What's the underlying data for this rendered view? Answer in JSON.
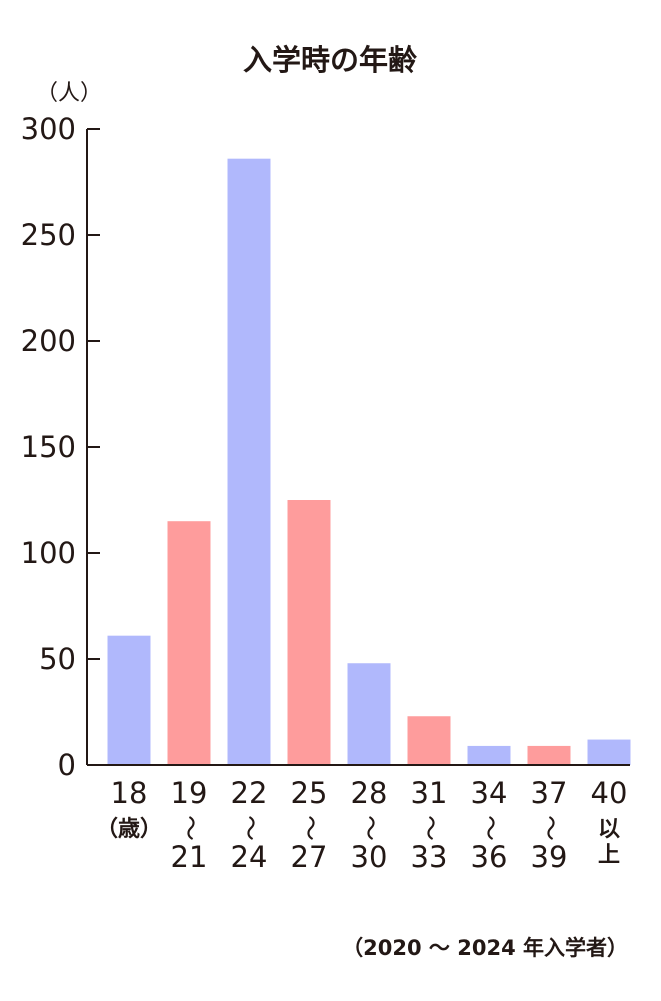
{
  "chart_data": {
    "type": "bar",
    "title": "入学時の年齢",
    "unit_label": "（人）",
    "footnote": "（2020 ～ 2024 年入学者）",
    "ylim": [
      0,
      300
    ],
    "yticks": [
      0,
      50,
      100,
      150,
      200,
      250,
      300
    ],
    "categories": [
      {
        "top": "18",
        "mid": "（歳）",
        "bottom": ""
      },
      {
        "top": "19",
        "mid": "～",
        "bottom": "21"
      },
      {
        "top": "22",
        "mid": "～",
        "bottom": "24"
      },
      {
        "top": "25",
        "mid": "～",
        "bottom": "27"
      },
      {
        "top": "28",
        "mid": "～",
        "bottom": "30"
      },
      {
        "top": "31",
        "mid": "～",
        "bottom": "33"
      },
      {
        "top": "34",
        "mid": "～",
        "bottom": "36"
      },
      {
        "top": "37",
        "mid": "～",
        "bottom": "39"
      },
      {
        "top": "40",
        "mid": "以",
        "bottom": "上"
      }
    ],
    "values": [
      61,
      115,
      286,
      125,
      48,
      23,
      9,
      9,
      12
    ],
    "colors": [
      "#b0b8fc",
      "#fe9c9c",
      "#b0b8fc",
      "#fe9c9c",
      "#b0b8fc",
      "#fe9c9c",
      "#b0b8fc",
      "#fe9c9c",
      "#b0b8fc"
    ],
    "grid": false,
    "legend": "none"
  }
}
